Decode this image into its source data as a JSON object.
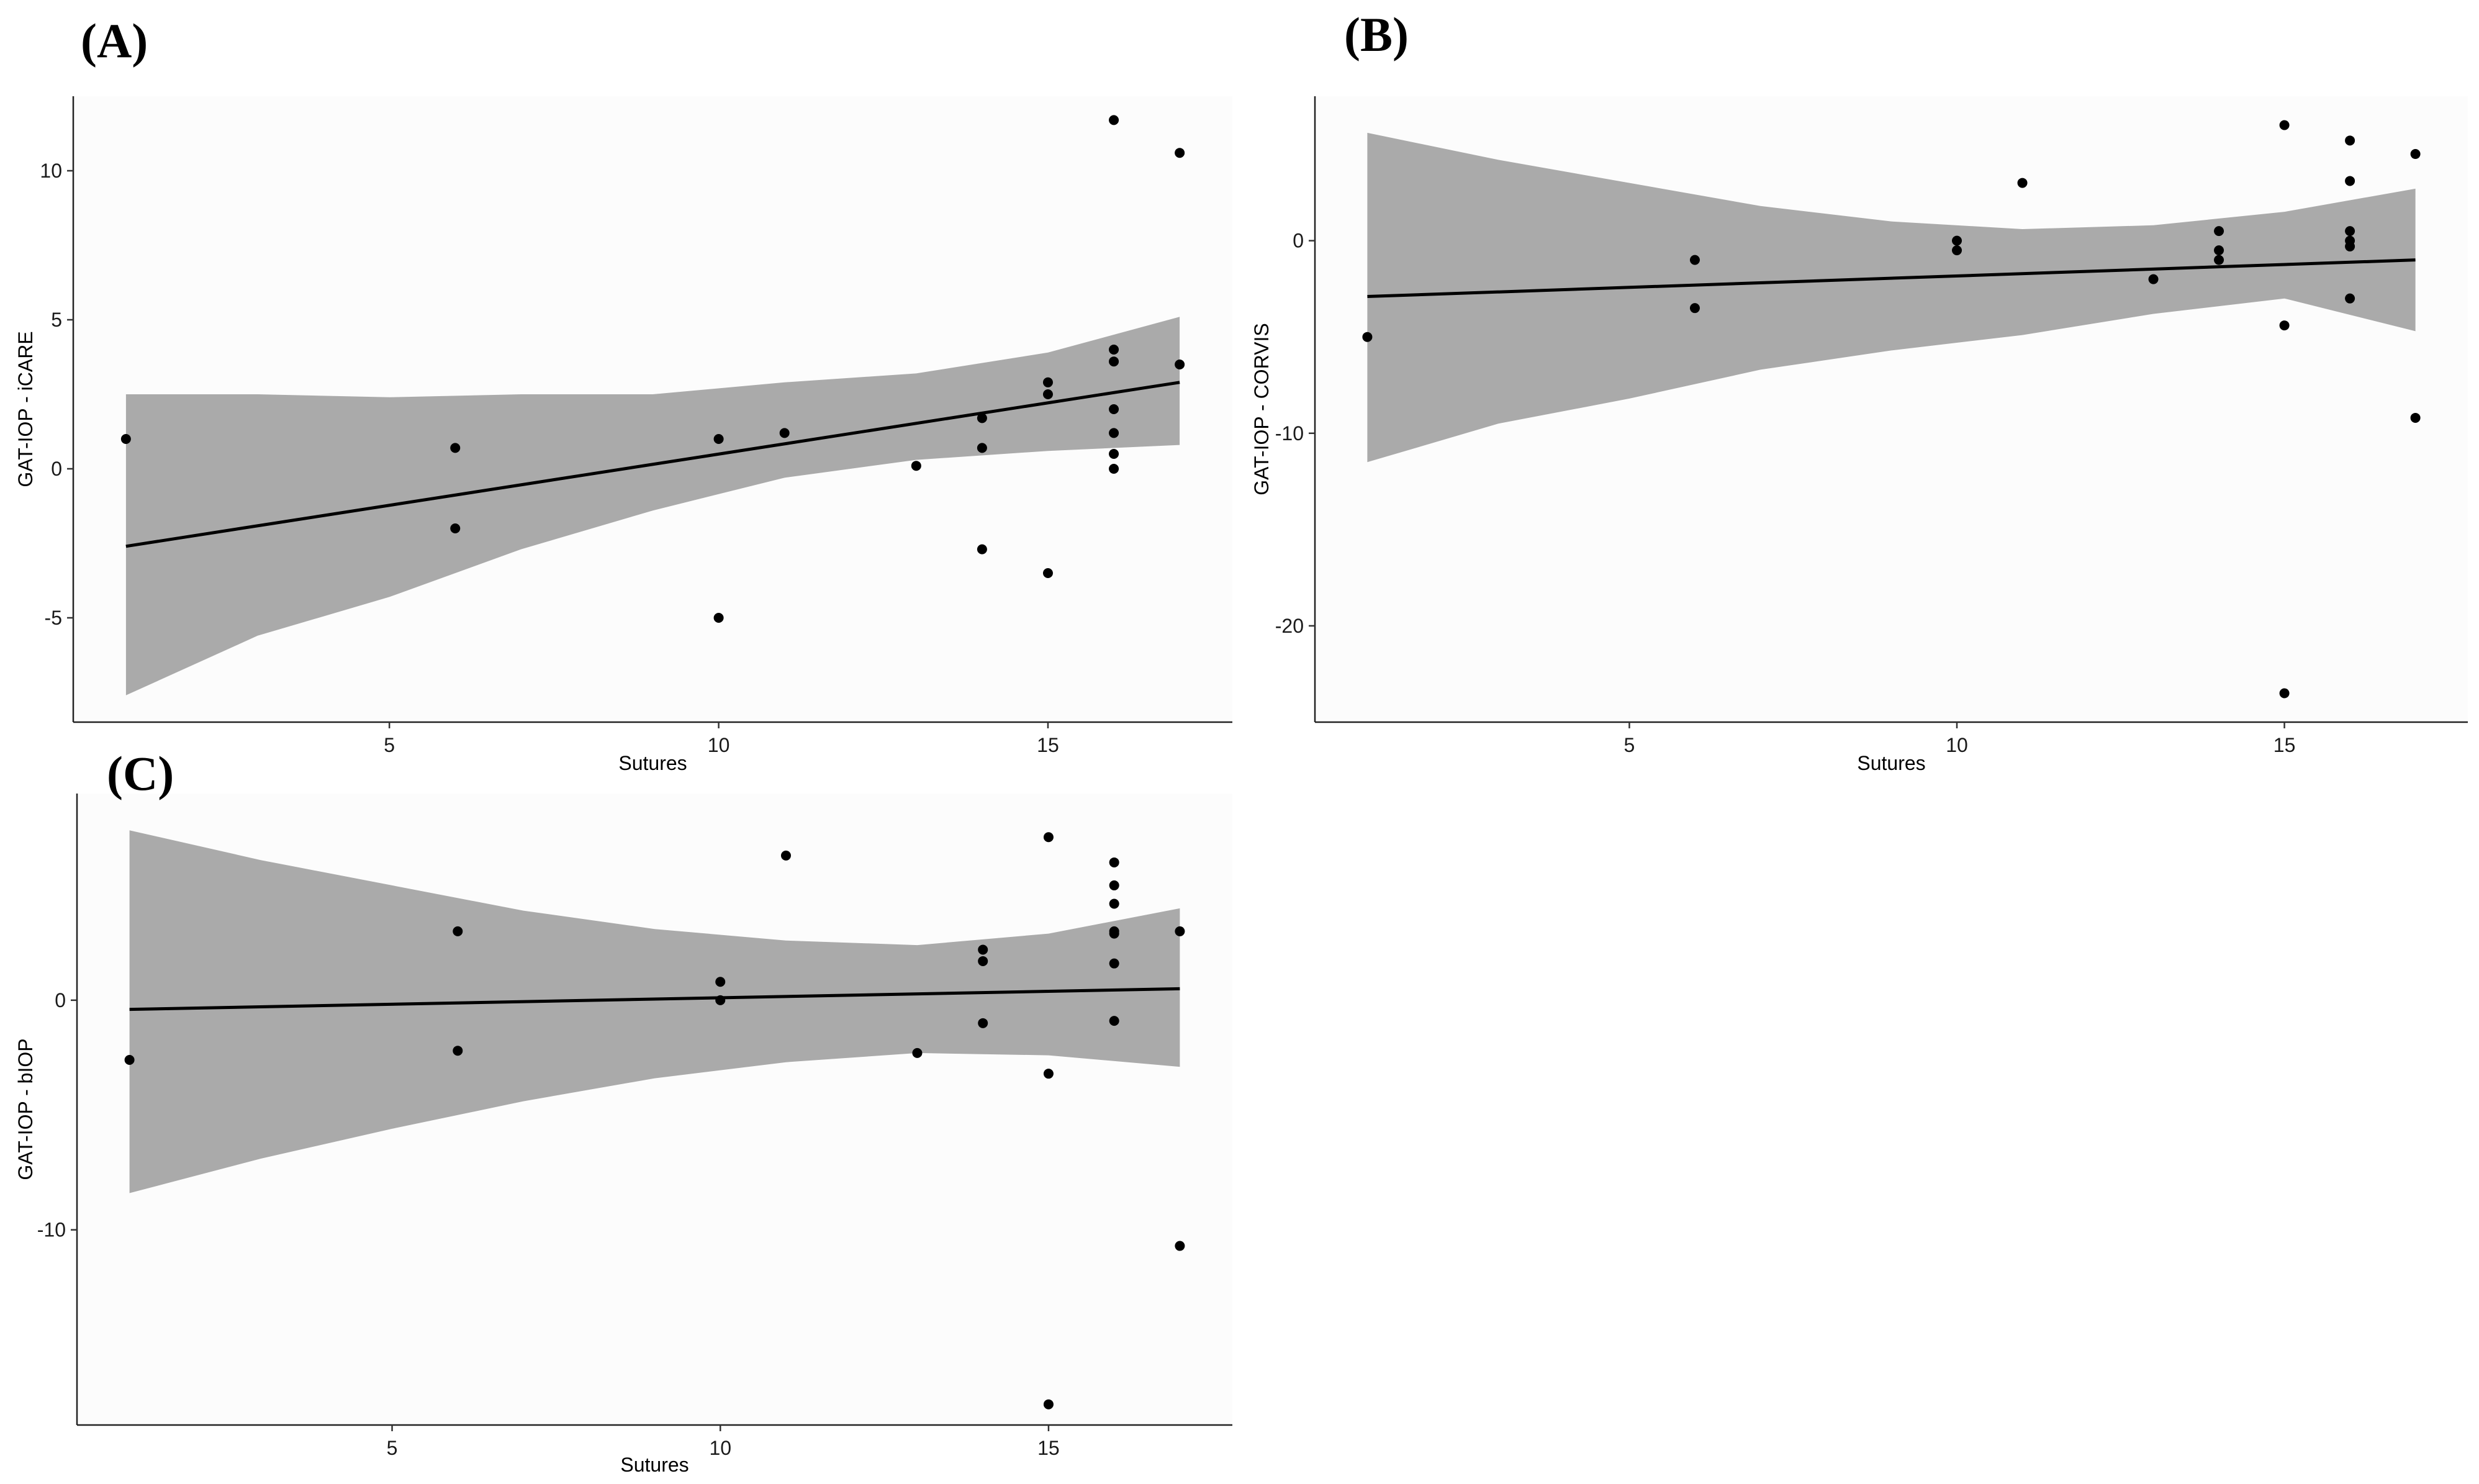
{
  "figure": {
    "colors": {
      "background": "#ffffff",
      "panel_background": "#fcfcfc",
      "ribbon": "#aaaaaa",
      "line": "#000000",
      "points": "#000000"
    }
  },
  "chart_data": [
    {
      "panel": "(A)",
      "type": "scatter",
      "xlabel": "Sutures",
      "ylabel": "GAT-IOP - iCARE",
      "xlim": [
        0.2,
        17.8
      ],
      "ylim": [
        -8.5,
        12.5
      ],
      "x_ticks": [
        5,
        10,
        15
      ],
      "x_tick_labels": [
        "5",
        "10",
        "15"
      ],
      "y_ticks": [
        -5,
        0,
        5,
        10
      ],
      "y_tick_labels": [
        "-5",
        "0",
        "5",
        "10"
      ],
      "points": {
        "x": [
          1,
          6,
          6,
          10,
          10,
          11,
          13,
          14,
          14,
          14,
          15,
          15,
          15,
          16,
          16,
          16,
          16,
          16,
          16,
          16,
          17,
          17
        ],
        "y": [
          1.0,
          0.7,
          -2.0,
          1.0,
          -5.0,
          1.2,
          0.1,
          1.7,
          0.7,
          -2.7,
          2.9,
          2.5,
          -3.5,
          11.7,
          4.0,
          3.6,
          2.0,
          1.2,
          0.5,
          0.0,
          10.6,
          3.5
        ]
      },
      "fit": {
        "x": [
          1,
          17
        ],
        "y": [
          -2.6,
          2.9
        ]
      },
      "ribbon": {
        "x": [
          1,
          3,
          5,
          7,
          9,
          11,
          13,
          15,
          17
        ],
        "lower": [
          -7.6,
          -5.6,
          -4.3,
          -2.7,
          -1.4,
          -0.3,
          0.3,
          0.6,
          0.8
        ],
        "upper": [
          2.5,
          2.5,
          2.4,
          2.5,
          2.5,
          2.9,
          3.2,
          3.9,
          5.1
        ]
      }
    },
    {
      "panel": "(B)",
      "type": "scatter",
      "xlabel": "Sutures",
      "ylabel": "GAT-IOP - CORVIS",
      "xlim": [
        0.2,
        17.8
      ],
      "ylim": [
        -25,
        7.5
      ],
      "x_ticks": [
        5,
        10,
        15
      ],
      "x_tick_labels": [
        "5",
        "10",
        "15"
      ],
      "y_ticks": [
        -20,
        -10,
        0
      ],
      "y_tick_labels": [
        "-20",
        "-10",
        "0"
      ],
      "points": {
        "x": [
          1,
          6,
          6,
          10,
          10,
          11,
          13,
          14,
          14,
          14,
          15,
          15,
          15,
          16,
          16,
          16,
          16,
          16,
          16,
          17,
          17
        ],
        "y": [
          -5.0,
          -1.0,
          -3.5,
          0.0,
          -0.5,
          3.0,
          -2.0,
          0.5,
          -0.5,
          -1.0,
          6.0,
          -4.4,
          -23.5,
          5.2,
          3.1,
          0.5,
          0.0,
          -0.3,
          -3.0,
          4.5,
          -9.2
        ]
      },
      "fit": {
        "x": [
          1,
          17
        ],
        "y": [
          -2.9,
          -1.0
        ]
      },
      "ribbon": {
        "x": [
          1,
          3,
          5,
          7,
          9,
          11,
          13,
          15,
          17
        ],
        "lower": [
          -11.5,
          -9.5,
          -8.2,
          -6.7,
          -5.7,
          -4.9,
          -3.8,
          -3.0,
          -4.7
        ],
        "upper": [
          5.6,
          4.2,
          3.0,
          1.8,
          1.0,
          0.6,
          0.8,
          1.5,
          2.7
        ]
      }
    },
    {
      "panel": "(C)",
      "type": "scatter",
      "xlabel": "Sutures",
      "ylabel": "GAT-IOP - bIOP",
      "xlim": [
        0.2,
        17.8
      ],
      "ylim": [
        -18.5,
        9
      ],
      "x_ticks": [
        5,
        10,
        15
      ],
      "x_tick_labels": [
        "5",
        "10",
        "15"
      ],
      "y_ticks": [
        -10,
        0
      ],
      "y_tick_labels": [
        "-10",
        "0"
      ],
      "points": {
        "x": [
          1,
          6,
          6,
          10,
          10,
          11,
          13,
          14,
          14,
          14,
          15,
          15,
          15,
          16,
          16,
          16,
          16,
          16,
          16,
          16,
          17,
          17
        ],
        "y": [
          -2.6,
          3.0,
          -2.2,
          0.8,
          0.0,
          6.3,
          -2.3,
          2.2,
          1.7,
          -1.0,
          7.1,
          -3.2,
          -17.6,
          6.0,
          5.0,
          4.2,
          2.9,
          1.6,
          -0.9,
          3.0,
          -10.7,
          3.0
        ]
      },
      "fit": {
        "x": [
          1,
          17
        ],
        "y": [
          -0.4,
          0.5
        ]
      },
      "ribbon": {
        "x": [
          1,
          3,
          5,
          7,
          9,
          11,
          13,
          15,
          17
        ],
        "lower": [
          -8.4,
          -6.9,
          -5.6,
          -4.4,
          -3.4,
          -2.7,
          -2.3,
          -2.4,
          -2.9
        ],
        "upper": [
          7.4,
          6.1,
          5.0,
          3.9,
          3.1,
          2.6,
          2.4,
          2.9,
          4.0
        ]
      }
    }
  ]
}
